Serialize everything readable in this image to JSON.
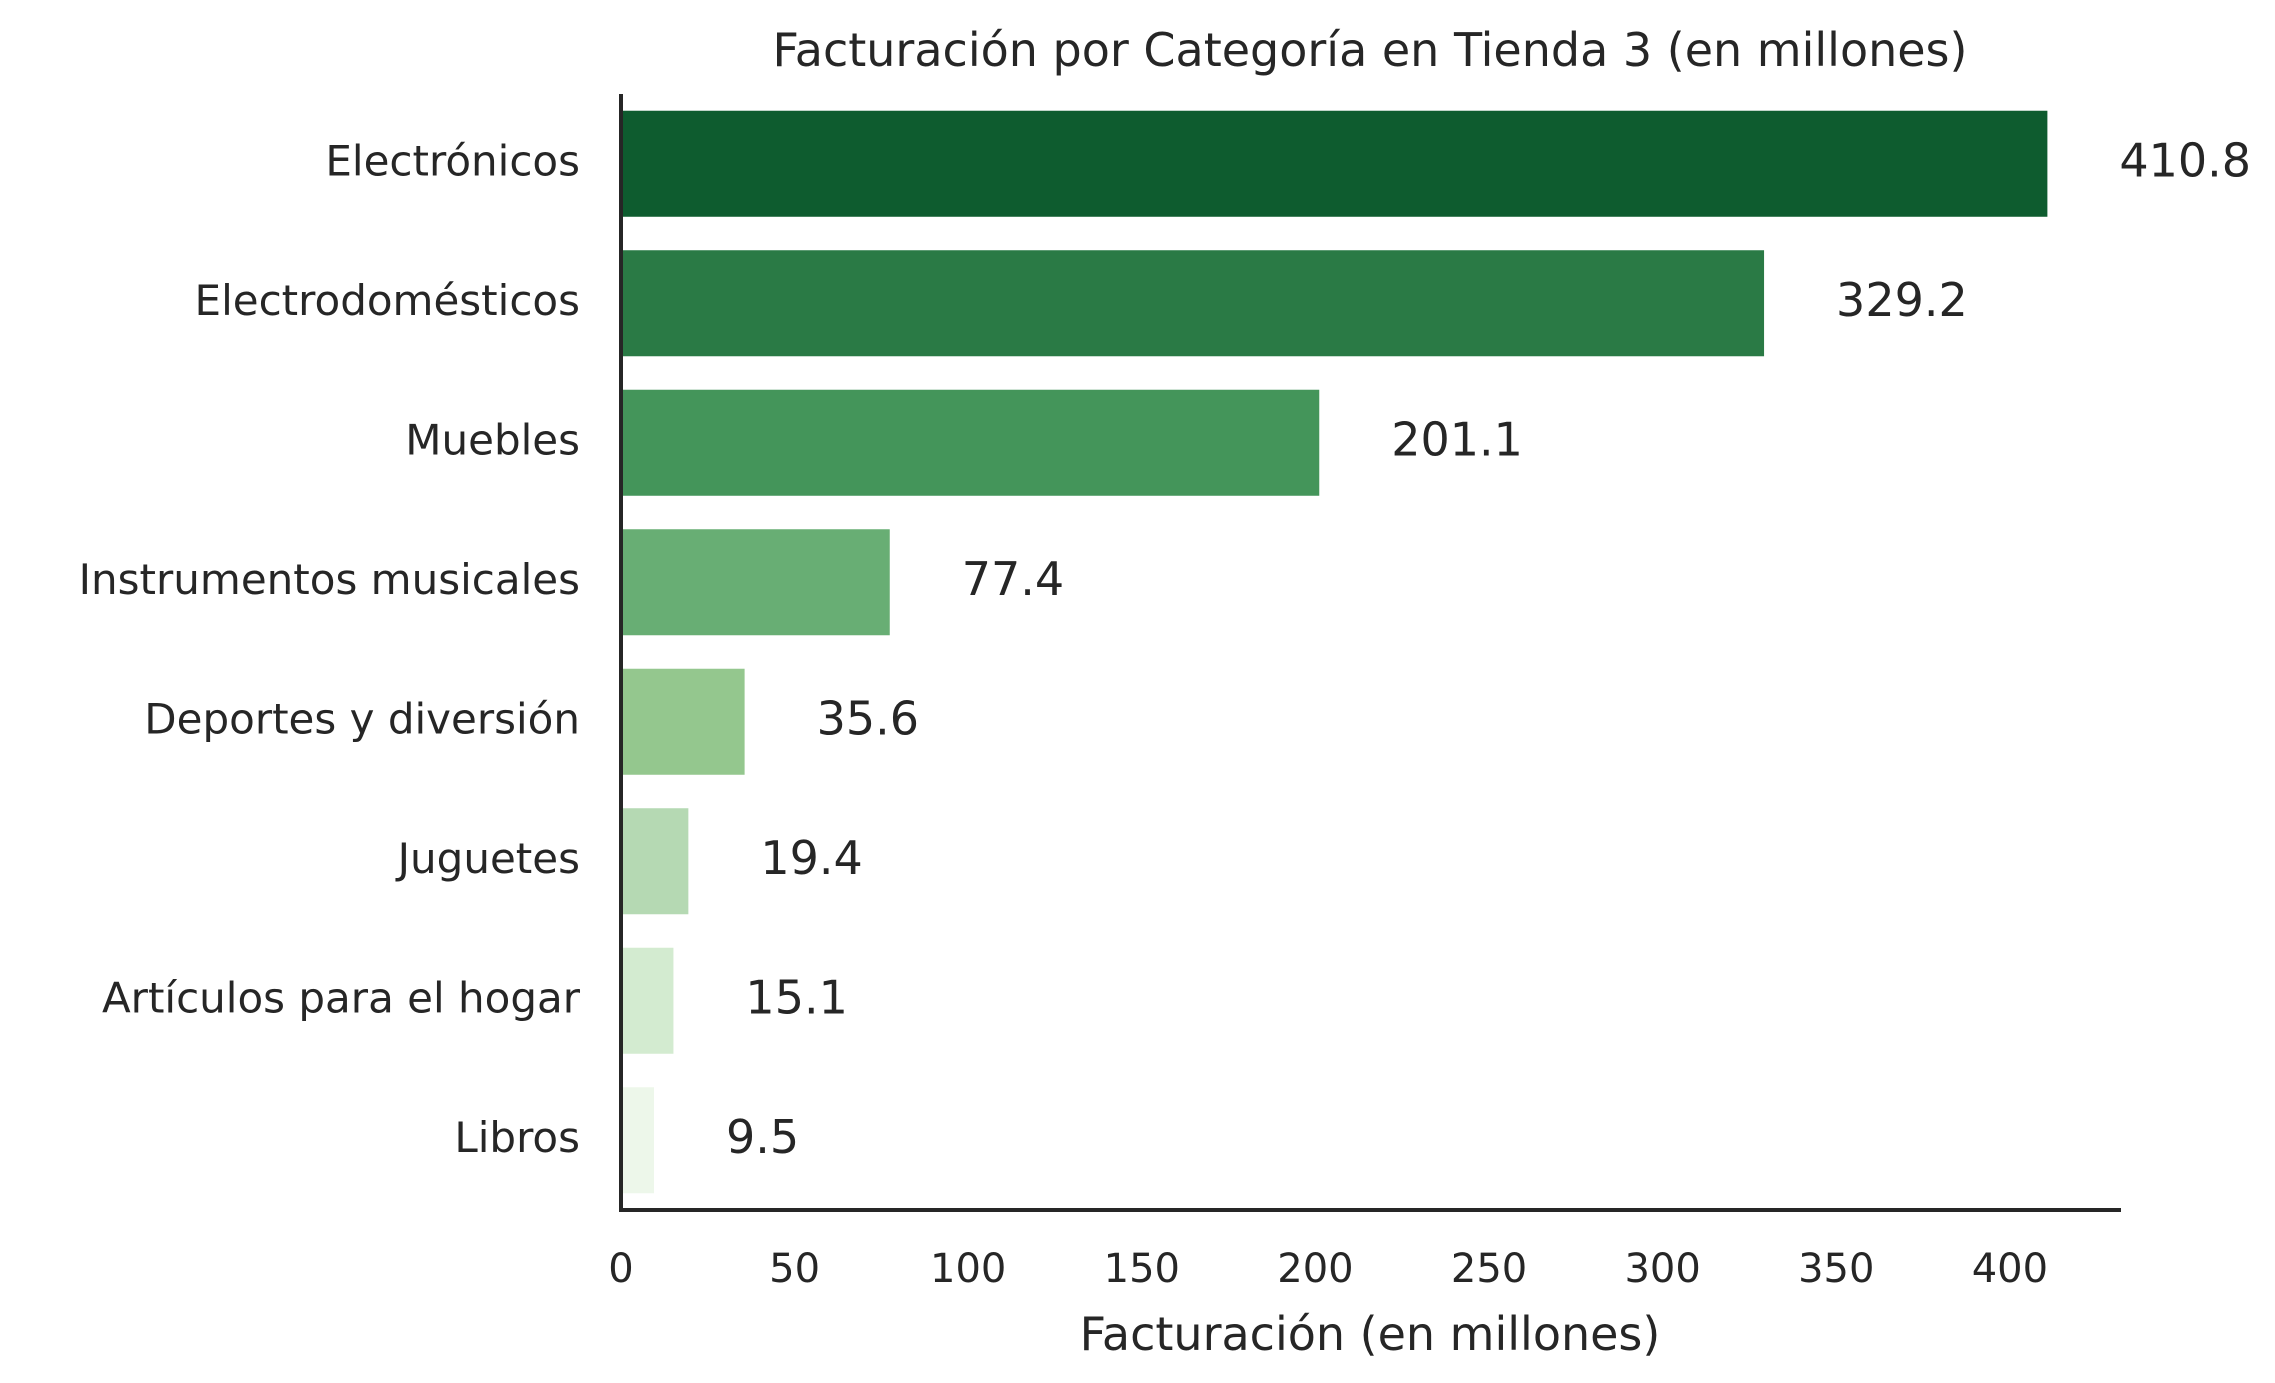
{
  "chart_data": {
    "type": "bar",
    "orientation": "horizontal",
    "title": "Facturación por Categoría en Tienda 3 (en millones)",
    "xlabel": "Facturación (en millones)",
    "ylabel": "",
    "categories": [
      "Electrónicos",
      "Electrodomésticos",
      "Muebles",
      "Instrumentos musicales",
      "Deportes y diversión",
      "Juguetes",
      "Artículos para el hogar",
      "Libros"
    ],
    "values": [
      410.8,
      329.2,
      201.1,
      77.4,
      35.6,
      19.4,
      15.1,
      9.5
    ],
    "value_labels": [
      "410.8",
      "329.2",
      "201.1",
      "77.4",
      "35.6",
      "19.4",
      "15.1",
      "9.5"
    ],
    "colors": [
      "#0e5c2f",
      "#2a7a45",
      "#44955a",
      "#68ae74",
      "#94c78e",
      "#b5d9b3",
      "#d3ebd0",
      "#edf7ea"
    ],
    "xlim": [
      0,
      432
    ],
    "xticks": [
      0,
      50,
      100,
      150,
      200,
      250,
      300,
      350,
      400
    ],
    "grid": false,
    "legend": "none"
  }
}
